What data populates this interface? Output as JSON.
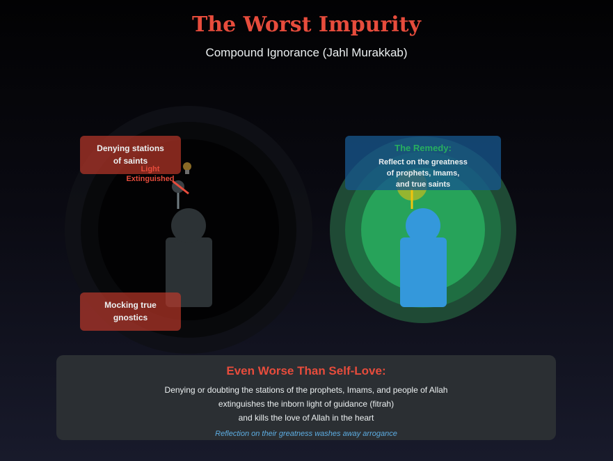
{
  "header": {
    "title": "The Worst Impurity",
    "subtitle": "Compound Ignorance (Jahl Murakkab)"
  },
  "left_scene": {
    "box_top": "Denying stations of saints",
    "box_top_line1": "Denying stations",
    "box_top_line2": "of saints",
    "light_status_line1": "Light",
    "light_status_line2": "Extinguished",
    "box_bottom_line1": "Mocking true",
    "box_bottom_line2": "gnostics"
  },
  "right_scene": {
    "remedy_title": "The Remedy:",
    "remedy_line1": "Reflect on the greatness",
    "remedy_line2": "of prophets, Imams,",
    "remedy_line3": "and true saints"
  },
  "bottom": {
    "title": "Even Worse Than Self-Love:",
    "line1": "Denying or doubting the stations of the prophets, Imams, and people of Allah",
    "line2": "extinguishes the inborn light of guidance (fitrah)",
    "line3": "and kills the love of Allah in the heart",
    "note": "Reflection on their greatness washes away arrogance"
  },
  "colors": {
    "title_red": "#e74c3c",
    "remedy_green": "#27ae60",
    "figure_blue": "#3498db",
    "figure_dark": "#2c3235",
    "note_blue": "#5dade2"
  },
  "icons": {
    "bulb": "lightbulb-icon"
  }
}
